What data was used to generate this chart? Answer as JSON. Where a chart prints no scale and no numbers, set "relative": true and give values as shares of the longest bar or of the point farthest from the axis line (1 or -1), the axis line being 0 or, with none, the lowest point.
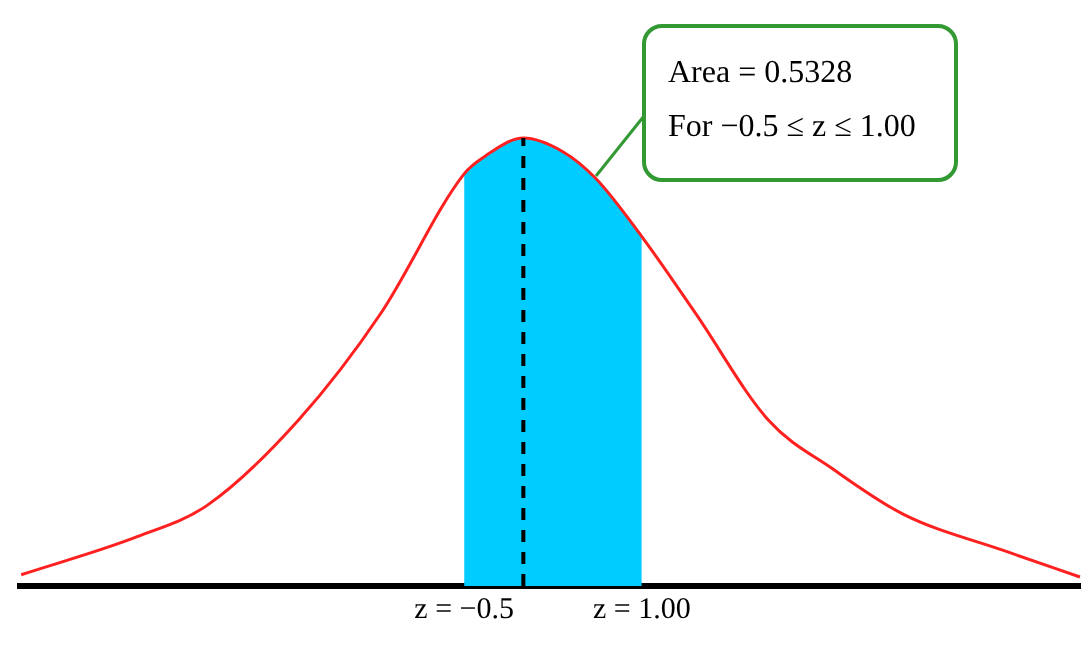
{
  "chart_data": {
    "type": "line",
    "relative": true,
    "xlim": [
      -4.25,
      4.7
    ],
    "xticks": [
      {
        "value": -0.5,
        "label": "z = −0.5"
      },
      {
        "value": 1,
        "label": "z = 1.00"
      }
    ],
    "tick_labels": "x",
    "grid": false,
    "legend": false,
    "marker": "none",
    "series": [
      {
        "type": "area",
        "color": "#00ccff",
        "x": [
          -0.5,
          -0.32,
          0,
          0.33,
          0.61,
          1.0
        ],
        "values": [
          0.92,
          0.96,
          1,
          0.97,
          0.91,
          0.78
        ]
      },
      {
        "type": "line",
        "color": "#ff2020",
        "x": [
          -4.24,
          -3.26,
          -2.67,
          -1.9,
          -1.2,
          -0.5,
          -0.32,
          0,
          0.33,
          0.61,
          1.0,
          1.45,
          2.07,
          2.62,
          3.21,
          4.09,
          4.7
        ],
        "values": [
          0.025,
          0.11,
          0.18,
          0.37,
          0.61,
          0.92,
          0.96,
          1,
          0.97,
          0.91,
          0.78,
          0.61,
          0.37,
          0.26,
          0.16,
          0.076,
          0.02
        ]
      }
    ],
    "ref_lines": [
      {
        "axis": "x",
        "value": 0,
        "color": "#000000",
        "line_style": "dashed"
      }
    ],
    "annotations": [
      "Area = 0.5328",
      "For −0.5 ≤ z ≤ 1.00"
    ]
  }
}
